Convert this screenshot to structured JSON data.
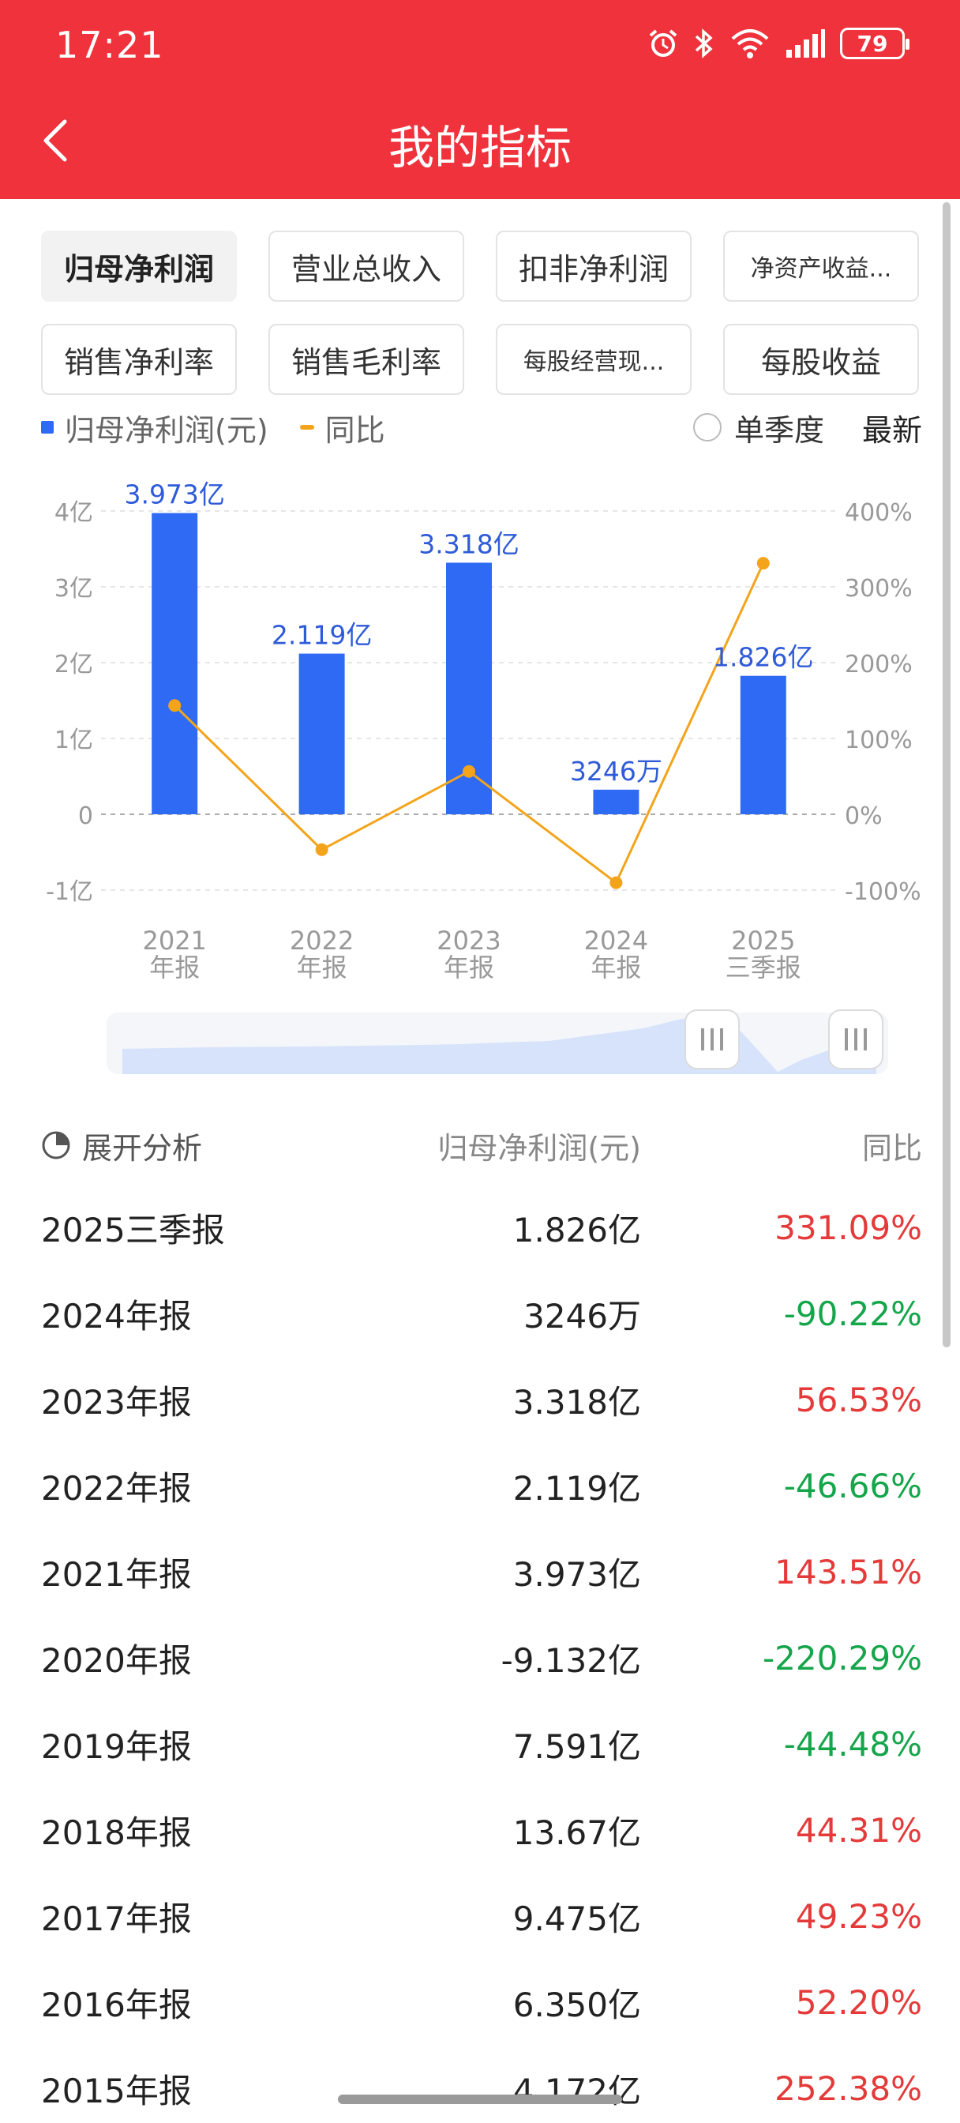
{
  "status_bar": {
    "time": "17:21",
    "battery": "79"
  },
  "header": {
    "title": "我的指标"
  },
  "tabs": [
    {
      "label": "归母净利润",
      "active": true
    },
    {
      "label": "营业总收入",
      "active": false
    },
    {
      "label": "扣非净利润",
      "active": false
    },
    {
      "label": "净资产收益...",
      "active": false,
      "small": true
    },
    {
      "label": "销售净利率",
      "active": false
    },
    {
      "label": "销售毛利率",
      "active": false
    },
    {
      "label": "每股经营现...",
      "active": false,
      "small": true
    },
    {
      "label": "每股收益",
      "active": false
    }
  ],
  "legend": {
    "bar_label": "归母净利润(元)",
    "line_label": "同比",
    "season_label": "单季度",
    "latest_label": "最新"
  },
  "chart_data": {
    "type": "bar",
    "categories": [
      "2021\n年报",
      "2022\n年报",
      "2023\n年报",
      "2024\n年报",
      "2025\n三季报"
    ],
    "series": [
      {
        "name": "归母净利润(元)",
        "type": "bar",
        "axis": "left",
        "unit": "亿",
        "values": [
          3.973,
          2.119,
          3.318,
          0.3246,
          1.826
        ],
        "labels": [
          "3.973亿",
          "2.119亿",
          "3.318亿",
          "3246万",
          "1.826亿"
        ],
        "color": "#2f6af5"
      },
      {
        "name": "同比",
        "type": "line",
        "axis": "right",
        "unit": "%",
        "values": [
          143.51,
          -46.66,
          56.53,
          -90.22,
          331.09
        ],
        "color": "#f3a41b"
      }
    ],
    "left_axis": {
      "ticks": [
        "4亿",
        "3亿",
        "2亿",
        "1亿",
        "0",
        "-1亿"
      ],
      "ylim": [
        -1,
        4
      ]
    },
    "right_axis": {
      "ticks": [
        "400%",
        "300%",
        "200%",
        "100%",
        "0%",
        "-100%"
      ],
      "ylim": [
        -100,
        400
      ]
    },
    "grid": true
  },
  "range_slider": {
    "start": 0.78,
    "end": 1.0
  },
  "table": {
    "expand_label": "展开分析",
    "value_header": "归母净利润(元)",
    "yoy_header": "同比",
    "rows": [
      {
        "period": "2025三季报",
        "value": "1.826亿",
        "yoy": "331.09%",
        "trend": "pos"
      },
      {
        "period": "2024年报",
        "value": "3246万",
        "yoy": "-90.22%",
        "trend": "neg"
      },
      {
        "period": "2023年报",
        "value": "3.318亿",
        "yoy": "56.53%",
        "trend": "pos"
      },
      {
        "period": "2022年报",
        "value": "2.119亿",
        "yoy": "-46.66%",
        "trend": "neg"
      },
      {
        "period": "2021年报",
        "value": "3.973亿",
        "yoy": "143.51%",
        "trend": "pos"
      },
      {
        "period": "2020年报",
        "value": "-9.132亿",
        "yoy": "-220.29%",
        "trend": "neg"
      },
      {
        "period": "2019年报",
        "value": "7.591亿",
        "yoy": "-44.48%",
        "trend": "neg"
      },
      {
        "period": "2018年报",
        "value": "13.67亿",
        "yoy": "44.31%",
        "trend": "pos"
      },
      {
        "period": "2017年报",
        "value": "9.475亿",
        "yoy": "49.23%",
        "trend": "pos"
      },
      {
        "period": "2016年报",
        "value": "6.350亿",
        "yoy": "52.20%",
        "trend": "pos"
      },
      {
        "period": "2015年报",
        "value": "4.172亿",
        "yoy": "252.38%",
        "trend": "pos"
      }
    ]
  }
}
